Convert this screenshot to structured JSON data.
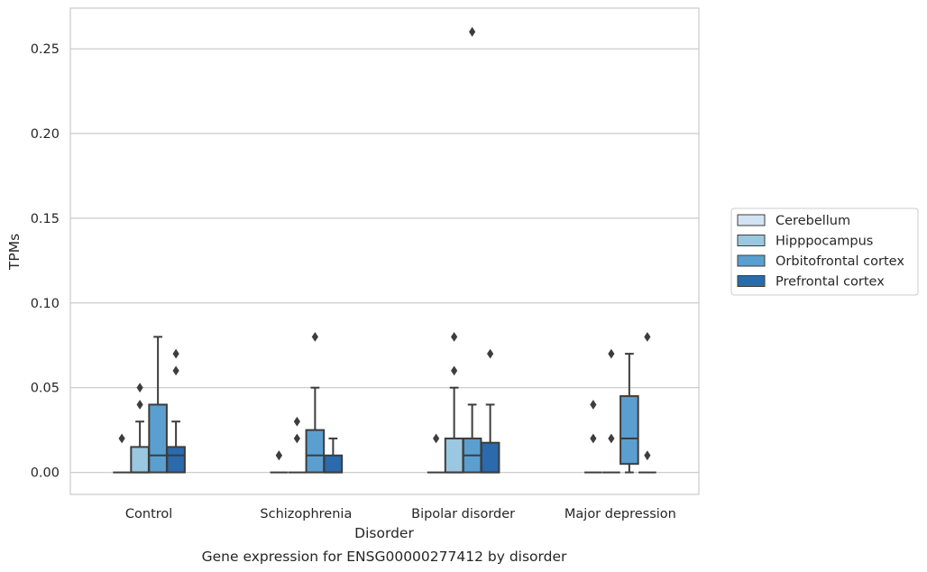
{
  "chart_data": {
    "type": "box",
    "caption": "Gene expression for ENSG00000277412 by disorder",
    "xlabel": "Disorder",
    "ylabel": "TPMs",
    "ylim": [
      -0.013,
      0.274
    ],
    "yticks": [
      0.0,
      0.05,
      0.1,
      0.15,
      0.2,
      0.25
    ],
    "ytick_labels": [
      "0.00",
      "0.05",
      "0.10",
      "0.15",
      "0.20",
      "0.25"
    ],
    "grid": "horizontal",
    "legend_position": "right",
    "categories": [
      "Control",
      "Schizophrenia",
      "Bipolar disorder",
      "Major depression"
    ],
    "series": [
      {
        "name": "Cerebellum",
        "color": "#d2e3f3",
        "boxes": [
          {
            "q1": 0.0,
            "median": 0.0,
            "q3": 0.0,
            "whisker_low": 0.0,
            "whisker_high": 0.0,
            "outliers": [
              0.02
            ]
          },
          {
            "q1": 0.0,
            "median": 0.0,
            "q3": 0.0,
            "whisker_low": 0.0,
            "whisker_high": 0.0,
            "outliers": [
              0.01,
              0.01
            ]
          },
          {
            "q1": 0.0,
            "median": 0.0,
            "q3": 0.0,
            "whisker_low": 0.0,
            "whisker_high": 0.0,
            "outliers": [
              0.02
            ]
          },
          {
            "q1": 0.0,
            "median": 0.0,
            "q3": 0.0,
            "whisker_low": 0.0,
            "whisker_high": 0.0,
            "outliers": [
              0.02,
              0.04
            ]
          }
        ]
      },
      {
        "name": "Hipppocampus",
        "color": "#9ac8e0",
        "boxes": [
          {
            "q1": 0.0,
            "median": 0.0,
            "q3": 0.015,
            "whisker_low": 0.0,
            "whisker_high": 0.03,
            "outliers": [
              0.04,
              0.05
            ]
          },
          {
            "q1": 0.0,
            "median": 0.0,
            "q3": 0.0,
            "whisker_low": 0.0,
            "whisker_high": 0.0,
            "outliers": [
              0.02,
              0.03
            ]
          },
          {
            "q1": 0.0,
            "median": 0.0,
            "q3": 0.02,
            "whisker_low": 0.0,
            "whisker_high": 0.05,
            "outliers": [
              0.06,
              0.08
            ]
          },
          {
            "q1": 0.0,
            "median": 0.0,
            "q3": 0.0,
            "whisker_low": 0.0,
            "whisker_high": 0.0,
            "outliers": [
              0.02,
              0.07
            ]
          }
        ]
      },
      {
        "name": "Orbitofrontal cortex",
        "color": "#5a9fcf",
        "boxes": [
          {
            "q1": 0.0,
            "median": 0.01,
            "q3": 0.04,
            "whisker_low": 0.0,
            "whisker_high": 0.08,
            "outliers": []
          },
          {
            "q1": 0.0,
            "median": 0.01,
            "q3": 0.025,
            "whisker_low": 0.0,
            "whisker_high": 0.05,
            "outliers": [
              0.08
            ]
          },
          {
            "q1": 0.0,
            "median": 0.01,
            "q3": 0.02,
            "whisker_low": 0.0,
            "whisker_high": 0.04,
            "outliers": [
              0.26
            ]
          },
          {
            "q1": 0.005,
            "median": 0.02,
            "q3": 0.045,
            "whisker_low": 0.0,
            "whisker_high": 0.07,
            "outliers": []
          }
        ]
      },
      {
        "name": "Prefrontal cortex",
        "color": "#2a6aad",
        "boxes": [
          {
            "q1": 0.0,
            "median": 0.01,
            "q3": 0.015,
            "whisker_low": 0.0,
            "whisker_high": 0.03,
            "outliers": [
              0.06,
              0.07
            ]
          },
          {
            "q1": 0.0,
            "median": 0.0,
            "q3": 0.01,
            "whisker_low": 0.0,
            "whisker_high": 0.02,
            "outliers": []
          },
          {
            "q1": 0.0,
            "median": 0.0,
            "q3": 0.0175,
            "whisker_low": 0.0,
            "whisker_high": 0.04,
            "outliers": [
              0.07
            ]
          },
          {
            "q1": 0.0,
            "median": 0.0,
            "q3": 0.0,
            "whisker_low": 0.0,
            "whisker_high": 0.0,
            "outliers": [
              0.01,
              0.08
            ]
          }
        ]
      }
    ]
  }
}
